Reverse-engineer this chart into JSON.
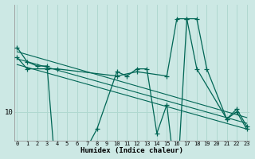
{
  "xlabel": "Humidex (Indice chaleur)",
  "bg_color": "#cce8e4",
  "line_color": "#006655",
  "grid_color": "#b0d8d0",
  "ylim": [
    8.0,
    17.5
  ],
  "xlim": [
    -0.3,
    23.3
  ],
  "ytick_val": 10,
  "series1_x": [
    0,
    1,
    2,
    3,
    4,
    5,
    6,
    7,
    8,
    10,
    11,
    12,
    13,
    14,
    15,
    16,
    17,
    18,
    19,
    21,
    22,
    23
  ],
  "series1_y": [
    14.5,
    13.5,
    13.2,
    13.2,
    4.5,
    7.2,
    7.5,
    7.5,
    8.8,
    12.8,
    12.5,
    13.0,
    13.0,
    8.5,
    10.5,
    4.5,
    16.5,
    16.5,
    13.0,
    9.5,
    10.0,
    8.8
  ],
  "series2_x": [
    0,
    1,
    3,
    4,
    10,
    12,
    15,
    16,
    17,
    18,
    21,
    22,
    23
  ],
  "series2_y": [
    13.8,
    13.0,
    13.0,
    13.0,
    12.5,
    12.8,
    12.5,
    16.5,
    16.5,
    13.0,
    9.5,
    10.2,
    9.0
  ],
  "trend1_x": [
    0,
    23
  ],
  "trend1_y": [
    14.2,
    9.6
  ],
  "trend2_x": [
    0,
    23
  ],
  "trend2_y": [
    13.7,
    9.2
  ],
  "trend3_x": [
    0,
    23
  ],
  "trend3_y": [
    13.3,
    8.8
  ]
}
